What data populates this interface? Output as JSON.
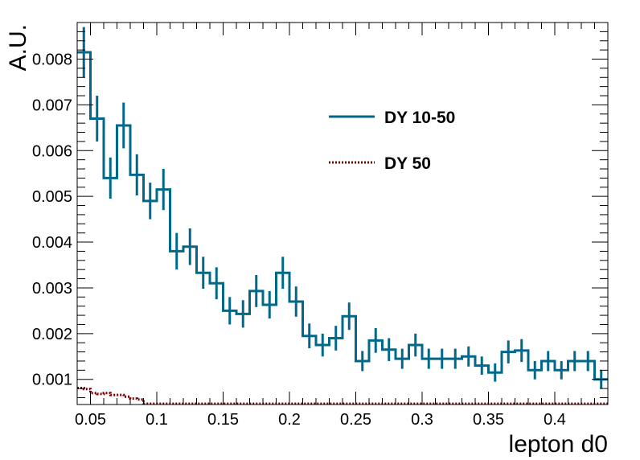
{
  "chart_data": {
    "type": "histogram",
    "xlabel": "lepton d0",
    "ylabel": "A.U.",
    "xlim": [
      0.04,
      0.44
    ],
    "ylim": [
      0.00045,
      0.0088
    ],
    "bin_width": 0.01,
    "x_ticks": [
      "0.05",
      "0.1",
      "0.15",
      "0.2",
      "0.25",
      "0.3",
      "0.35",
      "0.4"
    ],
    "y_ticks": [
      "0.001",
      "0.002",
      "0.003",
      "0.004",
      "0.005",
      "0.006",
      "0.007",
      "0.008"
    ],
    "legend_position": "upper-right",
    "series": [
      {
        "name": "DY 10-50",
        "color": "#00688b",
        "style": "solid",
        "x": [
          0.04,
          0.05,
          0.06,
          0.07,
          0.08,
          0.09,
          0.1,
          0.11,
          0.12,
          0.13,
          0.14,
          0.15,
          0.16,
          0.17,
          0.18,
          0.19,
          0.2,
          0.21,
          0.22,
          0.23,
          0.24,
          0.25,
          0.26,
          0.27,
          0.28,
          0.29,
          0.3,
          0.31,
          0.32,
          0.33,
          0.34,
          0.35,
          0.36,
          0.37,
          0.38,
          0.39,
          0.4,
          0.41,
          0.42,
          0.43
        ],
        "values": [
          0.00815,
          0.0067,
          0.0054,
          0.00655,
          0.00547,
          0.0049,
          0.00515,
          0.0038,
          0.0039,
          0.00333,
          0.0031,
          0.0025,
          0.00243,
          0.00293,
          0.00263,
          0.00333,
          0.0027,
          0.00195,
          0.00175,
          0.0019,
          0.00238,
          0.0014,
          0.00185,
          0.00165,
          0.00145,
          0.00175,
          0.00145,
          0.00145,
          0.00145,
          0.0015,
          0.0013,
          0.00115,
          0.0016,
          0.00163,
          0.0012,
          0.0014,
          0.0012,
          0.0014,
          0.0014,
          0.001
        ],
        "errors": [
          0.00055,
          0.0005,
          0.00045,
          0.0005,
          0.00045,
          0.0004,
          0.00045,
          0.0004,
          0.0004,
          0.00035,
          0.00035,
          0.0003,
          0.0003,
          0.00035,
          0.0003,
          0.00035,
          0.00033,
          0.00027,
          0.00025,
          0.00027,
          0.0003,
          0.00022,
          0.00027,
          0.00025,
          0.00022,
          0.00025,
          0.00022,
          0.00022,
          0.00022,
          0.00022,
          0.0002,
          0.0002,
          0.00025,
          0.00025,
          0.0002,
          0.00022,
          0.0002,
          0.00022,
          0.00022,
          0.0002
        ]
      },
      {
        "name": "DY 50",
        "color": "#800000",
        "style": "dotted",
        "x": [
          0.04,
          0.045,
          0.05,
          0.055,
          0.06,
          0.065,
          0.07,
          0.075,
          0.08,
          0.085,
          0.09,
          0.095,
          0.1,
          0.2,
          0.3,
          0.4
        ],
        "values": [
          0.00081,
          0.00079,
          0.0007,
          0.00068,
          0.0007,
          0.00066,
          0.00066,
          0.00062,
          0.00058,
          0.00056,
          0.00045,
          0.00045,
          0.00045,
          0.00045,
          0.00045,
          0.00045
        ]
      }
    ]
  }
}
